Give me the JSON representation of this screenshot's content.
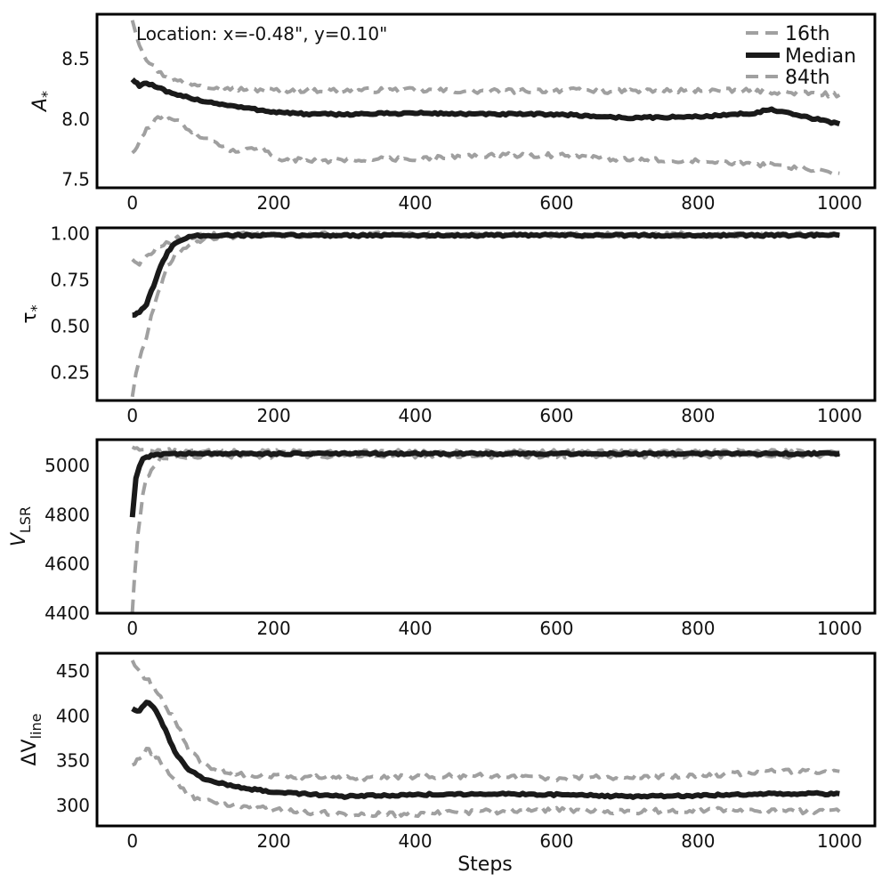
{
  "chart_data": {
    "type": "line",
    "title": "",
    "annotation": "Location: x=-0.48\", y=0.10\"",
    "legend": {
      "placement": "top-right",
      "entries": [
        {
          "label": "16th",
          "style": "dashed",
          "color": "#a0a0a0"
        },
        {
          "label": "Median",
          "style": "solid",
          "color": "#1a1a1a"
        },
        {
          "label": "84th",
          "style": "dashed",
          "color": "#a0a0a0"
        }
      ]
    },
    "xlabel": "Steps",
    "xlim": [
      -50,
      1050
    ],
    "xticks": [
      0,
      200,
      400,
      600,
      800,
      1000
    ],
    "colors": {
      "median": "#1a1a1a",
      "percentile": "#a0a0a0"
    },
    "panels": [
      {
        "ylabel_main": "A",
        "ylabel_sub": "*",
        "ylim": [
          7.43,
          8.87
        ],
        "yticks": [
          "7.5",
          "8.0",
          "8.5"
        ],
        "series": [
          {
            "name": "16th",
            "x": [
              0,
              10,
              20,
              40,
              60,
              80,
              100,
              150,
              200,
              250,
              300,
              400,
              500,
              600,
              700,
              800,
              900,
              1000
            ],
            "y": [
              8.82,
              8.62,
              8.5,
              8.38,
              8.32,
              8.3,
              8.28,
              8.25,
              8.24,
              8.24,
              8.24,
              8.24,
              8.23,
              8.24,
              8.23,
              8.24,
              8.23,
              8.2
            ]
          },
          {
            "name": "Median",
            "x": [
              0,
              10,
              20,
              40,
              60,
              80,
              100,
              150,
              200,
              250,
              300,
              400,
              500,
              600,
              700,
              800,
              880,
              900,
              950,
              1000
            ],
            "y": [
              8.33,
              8.28,
              8.3,
              8.25,
              8.2,
              8.18,
              8.15,
              8.1,
              8.06,
              8.04,
              8.04,
              8.05,
              8.04,
              8.04,
              8.01,
              8.02,
              8.05,
              8.08,
              8.02,
              7.96
            ]
          },
          {
            "name": "84th",
            "x": [
              0,
              10,
              20,
              40,
              60,
              80,
              100,
              150,
              180,
              200,
              250,
              300,
              400,
              500,
              600,
              700,
              800,
              900,
              1000
            ],
            "y": [
              7.72,
              7.8,
              7.92,
              8.02,
              8.0,
              7.92,
              7.85,
              7.72,
              7.78,
              7.68,
              7.65,
              7.66,
              7.67,
              7.7,
              7.7,
              7.66,
              7.66,
              7.62,
              7.55
            ]
          }
        ]
      },
      {
        "ylabel_main": "τ",
        "ylabel_sub": "*",
        "ylim": [
          0.1,
          1.03
        ],
        "yticks": [
          "0.25",
          "0.50",
          "0.75",
          "1.00"
        ],
        "series": [
          {
            "name": "16th",
            "x": [
              0,
              10,
              20,
              30,
              40,
              60,
              80,
              100,
              150,
              200,
              400,
              600,
              800,
              1000
            ],
            "y": [
              0.86,
              0.84,
              0.87,
              0.9,
              0.94,
              0.97,
              0.98,
              0.99,
              0.995,
              0.995,
              0.995,
              0.995,
              0.995,
              0.995
            ]
          },
          {
            "name": "Median",
            "x": [
              0,
              10,
              20,
              30,
              40,
              50,
              60,
              80,
              100,
              150,
              200,
              400,
              600,
              800,
              1000
            ],
            "y": [
              0.56,
              0.57,
              0.62,
              0.72,
              0.82,
              0.9,
              0.95,
              0.98,
              0.99,
              0.99,
              0.99,
              0.99,
              0.99,
              0.99,
              0.99
            ]
          },
          {
            "name": "84th",
            "x": [
              0,
              5,
              10,
              20,
              30,
              40,
              50,
              60,
              80,
              100,
              150,
              200,
              400,
              600,
              800,
              1000
            ],
            "y": [
              0.12,
              0.25,
              0.32,
              0.45,
              0.6,
              0.72,
              0.82,
              0.88,
              0.94,
              0.97,
              0.985,
              0.99,
              0.99,
              0.99,
              0.99,
              0.99
            ]
          }
        ]
      },
      {
        "ylabel_main": "V",
        "ylabel_sub": "LSR",
        "ylim": [
          4400,
          5105
        ],
        "yticks": [
          "4400",
          "4600",
          "4800",
          "5000"
        ],
        "series": [
          {
            "name": "16th",
            "x": [
              0,
              10,
              20,
              40,
              60,
              100,
              200,
              400,
              600,
              800,
              1000
            ],
            "y": [
              5075,
              5072,
              5065,
              5060,
              5058,
              5055,
              5055,
              5055,
              5055,
              5055,
              5055
            ]
          },
          {
            "name": "Median",
            "x": [
              0,
              5,
              10,
              15,
              20,
              30,
              40,
              60,
              100,
              200,
              400,
              600,
              800,
              1000
            ],
            "y": [
              4790,
              4950,
              5000,
              5025,
              5035,
              5042,
              5045,
              5048,
              5048,
              5048,
              5048,
              5048,
              5048,
              5048
            ]
          },
          {
            "name": "84th",
            "x": [
              0,
              3,
              8,
              15,
              20,
              30,
              40,
              60,
              100,
              200,
              400,
              600,
              800,
              1000
            ],
            "y": [
              4405,
              4550,
              4720,
              4880,
              4950,
              5000,
              5025,
              5035,
              5040,
              5040,
              5040,
              5040,
              5040,
              5040
            ]
          }
        ]
      },
      {
        "ylabel_main": "ΔV",
        "ylabel_sub": "line",
        "ylim": [
          277,
          470
        ],
        "yticks": [
          "300",
          "350",
          "400",
          "450"
        ],
        "series": [
          {
            "name": "16th",
            "x": [
              0,
              10,
              20,
              30,
              40,
              60,
              80,
              100,
              150,
              200,
              300,
              400,
              500,
              600,
              700,
              800,
              900,
              1000
            ],
            "y": [
              462,
              448,
              442,
              432,
              420,
              395,
              362,
              345,
              335,
              333,
              330,
              332,
              333,
              330,
              332,
              333,
              338,
              338
            ]
          },
          {
            "name": "Median",
            "x": [
              0,
              10,
              20,
              30,
              40,
              50,
              60,
              80,
              100,
              150,
              200,
              300,
              400,
              500,
              600,
              700,
              800,
              900,
              1000
            ],
            "y": [
              408,
              405,
              415,
              410,
              395,
              378,
              360,
              340,
              330,
              320,
              315,
              310,
              312,
              313,
              312,
              310,
              311,
              313,
              313
            ]
          },
          {
            "name": "84th",
            "x": [
              0,
              10,
              20,
              30,
              40,
              60,
              80,
              100,
              150,
              200,
              300,
              400,
              500,
              600,
              700,
              800,
              900,
              1000
            ],
            "y": [
              345,
              352,
              362,
              358,
              348,
              328,
              312,
              305,
              300,
              295,
              290,
              290,
              293,
              295,
              293,
              295,
              294,
              293
            ]
          }
        ]
      }
    ]
  }
}
